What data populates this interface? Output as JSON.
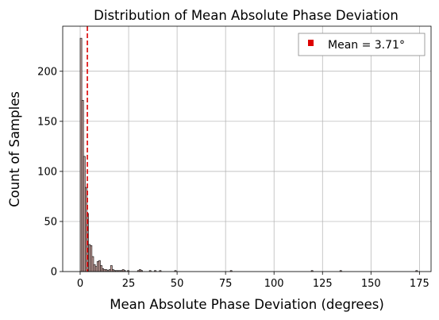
{
  "chart_data": {
    "type": "bar",
    "title": "Distribution of Mean Absolute Phase Deviation",
    "xlabel": "Mean Absolute Phase Deviation (degrees)",
    "ylabel": "Count of Samples",
    "xlim": [
      -9,
      181
    ],
    "ylim": [
      0,
      245
    ],
    "xticks": [
      0,
      25,
      50,
      75,
      100,
      125,
      150,
      175
    ],
    "yticks": [
      0,
      50,
      100,
      150,
      200
    ],
    "grid": true,
    "legend_position": "top-right",
    "bin_width": 0.87,
    "bins": [
      {
        "x": 0.0,
        "count": 233
      },
      {
        "x": 0.87,
        "count": 171
      },
      {
        "x": 1.74,
        "count": 115
      },
      {
        "x": 2.61,
        "count": 84
      },
      {
        "x": 3.48,
        "count": 58
      },
      {
        "x": 4.35,
        "count": 27
      },
      {
        "x": 5.22,
        "count": 26
      },
      {
        "x": 6.09,
        "count": 15
      },
      {
        "x": 6.96,
        "count": 7
      },
      {
        "x": 7.83,
        "count": 5
      },
      {
        "x": 8.7,
        "count": 10
      },
      {
        "x": 9.57,
        "count": 11
      },
      {
        "x": 10.44,
        "count": 6
      },
      {
        "x": 11.31,
        "count": 3
      },
      {
        "x": 12.18,
        "count": 2
      },
      {
        "x": 13.05,
        "count": 2
      },
      {
        "x": 13.92,
        "count": 1
      },
      {
        "x": 14.79,
        "count": 2
      },
      {
        "x": 15.66,
        "count": 6
      },
      {
        "x": 16.53,
        "count": 2
      },
      {
        "x": 17.4,
        "count": 1
      },
      {
        "x": 18.27,
        "count": 1
      },
      {
        "x": 19.14,
        "count": 1
      },
      {
        "x": 20.01,
        "count": 1
      },
      {
        "x": 20.88,
        "count": 1
      },
      {
        "x": 21.75,
        "count": 2
      },
      {
        "x": 22.62,
        "count": 1
      },
      {
        "x": 24.36,
        "count": 1
      },
      {
        "x": 29.58,
        "count": 1
      },
      {
        "x": 30.45,
        "count": 2
      },
      {
        "x": 31.32,
        "count": 1
      },
      {
        "x": 35.67,
        "count": 1
      },
      {
        "x": 38.28,
        "count": 1
      },
      {
        "x": 40.89,
        "count": 1
      },
      {
        "x": 48.72,
        "count": 1
      },
      {
        "x": 77.43,
        "count": 1
      },
      {
        "x": 119.19,
        "count": 1
      },
      {
        "x": 133.98,
        "count": 1
      },
      {
        "x": 173.13,
        "count": 1
      }
    ],
    "mean_line": {
      "x": 3.71,
      "label": "Mean = 3.71°",
      "color": "#dd0000"
    },
    "colors": {
      "bar_fill": "#c9a39f",
      "bar_edge": "#000000",
      "grid": "#b0b0b0"
    }
  }
}
